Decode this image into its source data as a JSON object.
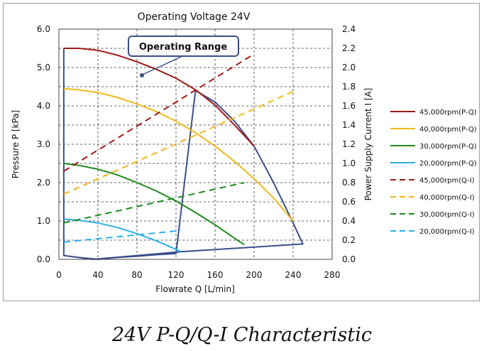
{
  "caption": "24V P-Q/Q-I Characteristic",
  "chart_data": {
    "type": "line",
    "title": "Operating Voltage 24V",
    "xlabel": "Flowrate Q [L/min]",
    "ylabel": "Pressure P [kPa]",
    "y2label": "Power Supply Current I [A]",
    "xlim": [
      0,
      280
    ],
    "ylim": [
      0,
      6.0
    ],
    "y2lim": [
      0,
      2.4
    ],
    "xticks": [
      "0",
      "40",
      "80",
      "120",
      "160",
      "200",
      "240",
      "280"
    ],
    "yticks": [
      "0.0",
      "1.0",
      "2.0",
      "3.0",
      "4.0",
      "5.0",
      "6.0"
    ],
    "y2ticks": [
      "0.0",
      "0.2",
      "0.4",
      "0.6",
      "0.8",
      "1.0",
      "1.2",
      "1.4",
      "1.6",
      "1.8",
      "2.0",
      "2.2",
      "2.4"
    ],
    "grid": true,
    "legend_position": "right",
    "annotation": "Operating Range",
    "series": [
      {
        "name": "45,000rpm(P-Q)",
        "axis": "left",
        "style": "solid",
        "color": "#a01818",
        "x": [
          5,
          20,
          40,
          60,
          80,
          100,
          120,
          140,
          160,
          180,
          200
        ],
        "y": [
          5.5,
          5.5,
          5.45,
          5.32,
          5.15,
          4.95,
          4.72,
          4.42,
          4.02,
          3.5,
          2.95
        ]
      },
      {
        "name": "40,000rpm(P-Q)",
        "axis": "left",
        "style": "solid",
        "color": "#f2b81c",
        "x": [
          5,
          20,
          40,
          60,
          80,
          100,
          120,
          140,
          160,
          180,
          200,
          220,
          240
        ],
        "y": [
          4.45,
          4.42,
          4.35,
          4.22,
          4.05,
          3.85,
          3.6,
          3.3,
          2.95,
          2.55,
          2.1,
          1.6,
          1.0
        ]
      },
      {
        "name": "30,000rpm(P-Q)",
        "axis": "left",
        "style": "solid",
        "color": "#1f8a1f",
        "x": [
          5,
          20,
          40,
          60,
          80,
          100,
          120,
          140,
          160,
          180,
          190
        ],
        "y": [
          2.5,
          2.45,
          2.35,
          2.2,
          2.0,
          1.78,
          1.52,
          1.22,
          0.9,
          0.55,
          0.38
        ]
      },
      {
        "name": "20,000rpm(P-Q)",
        "axis": "left",
        "style": "solid",
        "color": "#2bb0e8",
        "x": [
          5,
          20,
          40,
          60,
          80,
          100,
          120,
          125
        ],
        "y": [
          1.05,
          1.02,
          0.95,
          0.83,
          0.67,
          0.48,
          0.26,
          0.2
        ]
      },
      {
        "name": "45,000rpm(Q-I)",
        "axis": "right",
        "style": "dashed",
        "color": "#a01818",
        "x": [
          5,
          200
        ],
        "y": [
          0.92,
          2.14
        ]
      },
      {
        "name": "40,000rpm(Q-I)",
        "axis": "right",
        "style": "dashed",
        "color": "#f2b81c",
        "x": [
          5,
          240
        ],
        "y": [
          0.68,
          1.75
        ]
      },
      {
        "name": "30,000rpm(Q-I)",
        "axis": "right",
        "style": "dashed",
        "color": "#1f8a1f",
        "x": [
          5,
          190
        ],
        "y": [
          0.38,
          0.8
        ]
      },
      {
        "name": "20,000rpm(Q-I)",
        "axis": "right",
        "style": "dashed",
        "color": "#2bb0e8",
        "x": [
          5,
          125
        ],
        "y": [
          0.18,
          0.3
        ]
      }
    ],
    "operating_range": {
      "color": "#3a4f8a",
      "x": [
        5,
        5,
        20,
        40,
        60,
        80,
        100,
        120,
        140,
        160,
        180,
        200,
        220,
        240,
        250,
        125,
        35,
        5
      ],
      "y": [
        5.5,
        0.1,
        0.05,
        0.0,
        0.05,
        0.08,
        0.12,
        0.15,
        4.4,
        4.1,
        3.6,
        2.95,
        2.0,
        0.95,
        0.4,
        0.2,
        0.0,
        0.1
      ]
    }
  }
}
